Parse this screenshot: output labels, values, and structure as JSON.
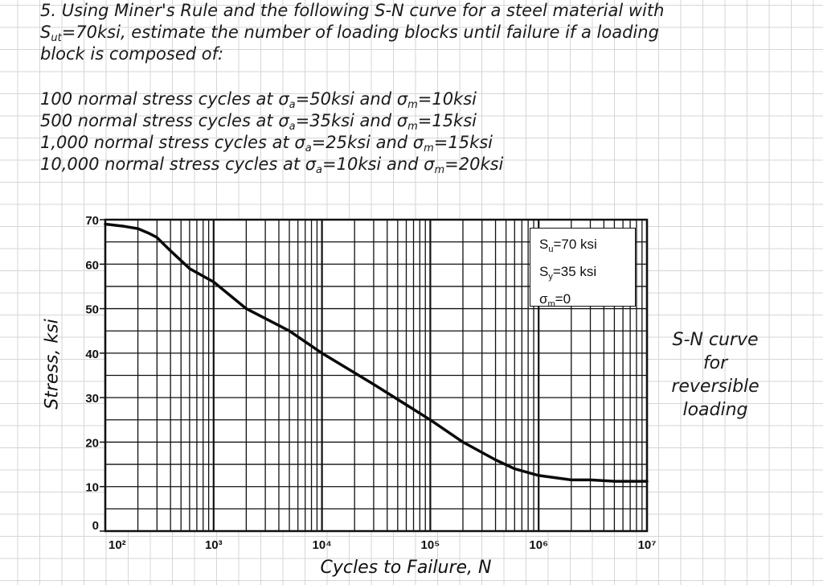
{
  "problem": {
    "line1": "5. Using Miner's Rule and the following S-N curve for a steel material with",
    "line2_pre": "S",
    "line2_sub": "ut",
    "line2_post": "=70ksi,  estimate the number of loading blocks until failure if a loading",
    "line3": "block is composed of:",
    "cycles": [
      {
        "pre": "100 normal stress cycles at σ",
        "a_sub": "a",
        "mid": "=50ksi and σ",
        "m_sub": "m",
        "post": "=10ksi"
      },
      {
        "pre": "500 normal stress cycles at σ",
        "a_sub": "a",
        "mid": "=35ksi and σ",
        "m_sub": "m",
        "post": "=15ksi"
      },
      {
        "pre": "1,000 normal stress cycles at σ",
        "a_sub": "a",
        "mid": "=25ksi and σ",
        "m_sub": "m",
        "post": "=15ksi"
      },
      {
        "pre": "10,000 normal stress cycles at σ",
        "a_sub": "a",
        "mid": "=10ksi and σ",
        "m_sub": "m",
        "post": "=20ksi"
      }
    ]
  },
  "infobox": {
    "su_pre": "S",
    "su_sub": "u",
    "su_post": "=70 ksi",
    "sy_pre": "S",
    "sy_sub": "y",
    "sy_post": "=35 ksi",
    "sm_pre": "σ",
    "sm_sub": "m",
    "sm_post": "=0"
  },
  "side_note": [
    "S-N curve",
    "for",
    "reversible",
    "loading"
  ],
  "chart_data": {
    "type": "line",
    "xlabel": "Cycles to Failure, N",
    "ylabel": "Stress, ksi",
    "xscale": "log",
    "xlim": [
      100,
      10000000
    ],
    "ylim": [
      0,
      70
    ],
    "grid": true,
    "x_ticks": [
      "10²",
      "10³",
      "10⁴",
      "10⁵",
      "10⁶",
      "10⁷"
    ],
    "x_tick_values": [
      100,
      1000,
      10000,
      100000,
      1000000,
      10000000
    ],
    "y_ticks": [
      "0",
      "10",
      "20",
      "30",
      "40",
      "50",
      "60",
      "70"
    ],
    "y_tick_values": [
      0,
      10,
      20,
      30,
      40,
      50,
      60,
      70
    ],
    "series": [
      {
        "x": [
          100,
          150,
          200,
          250,
          300,
          400,
          600,
          1000,
          2000,
          5000,
          10000,
          30000,
          100000,
          200000,
          400000,
          600000,
          1000000,
          2000000,
          3000000,
          5000000,
          10000000
        ],
        "y": [
          69,
          68.5,
          68,
          67,
          66,
          63,
          59,
          56,
          50,
          45,
          40,
          33,
          25,
          20,
          16,
          14,
          12.5,
          11.5,
          11.5,
          11.2,
          11.2
        ]
      }
    ]
  }
}
